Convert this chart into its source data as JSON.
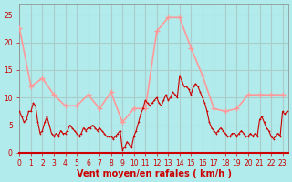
{
  "background_color": "#b2ebeb",
  "grid_color": "#aacccc",
  "line1_color": "#ff9999",
  "line2_color": "#cc0000",
  "xlabel": "Vent moyen/en rafales ( km/h )",
  "xlabel_color": "#cc0000",
  "ylabel_ticks": [
    0,
    5,
    10,
    15,
    20,
    25
  ],
  "xlim": [
    0,
    23.5
  ],
  "ylim": [
    0,
    27
  ],
  "x_ticks": [
    0,
    1,
    2,
    3,
    4,
    5,
    6,
    7,
    8,
    9,
    10,
    11,
    12,
    13,
    14,
    15,
    16,
    17,
    18,
    19,
    20,
    21,
    22,
    23
  ],
  "rafales_x": [
    0,
    1,
    2,
    3,
    4,
    5,
    6,
    7,
    8,
    9,
    10,
    11,
    12,
    13,
    14,
    15,
    16,
    17,
    18,
    19,
    20,
    21,
    22,
    23
  ],
  "rafales_y": [
    22.5,
    12.0,
    13.5,
    10.5,
    8.5,
    8.5,
    10.5,
    8.0,
    11.0,
    5.5,
    8.0,
    8.0,
    22.0,
    24.5,
    24.5,
    19.0,
    14.0,
    8.0,
    7.5,
    8.0,
    10.5,
    10.5,
    10.5,
    10.5
  ],
  "moyen_x": [
    0.0,
    0.2,
    0.4,
    0.6,
    0.8,
    1.0,
    1.2,
    1.4,
    1.6,
    1.8,
    2.0,
    2.2,
    2.4,
    2.6,
    2.8,
    3.0,
    3.2,
    3.4,
    3.6,
    3.8,
    4.0,
    4.2,
    4.4,
    4.6,
    4.8,
    5.0,
    5.2,
    5.4,
    5.6,
    5.8,
    6.0,
    6.2,
    6.4,
    6.6,
    6.8,
    7.0,
    7.2,
    7.4,
    7.6,
    7.8,
    8.0,
    8.2,
    8.4,
    8.6,
    8.8,
    9.0,
    9.2,
    9.4,
    9.6,
    9.8,
    10.0,
    10.2,
    10.4,
    10.6,
    10.8,
    11.0,
    11.2,
    11.4,
    11.6,
    11.8,
    12.0,
    12.2,
    12.4,
    12.6,
    12.8,
    13.0,
    13.2,
    13.4,
    13.6,
    13.8,
    14.0,
    14.2,
    14.4,
    14.6,
    14.8,
    15.0,
    15.2,
    15.4,
    15.6,
    15.8,
    16.0,
    16.2,
    16.4,
    16.6,
    16.8,
    17.0,
    17.2,
    17.4,
    17.6,
    17.8,
    18.0,
    18.2,
    18.4,
    18.6,
    18.8,
    19.0,
    19.2,
    19.4,
    19.6,
    19.8,
    20.0,
    20.2,
    20.4,
    20.6,
    20.8,
    21.0,
    21.2,
    21.4,
    21.6,
    21.8,
    22.0,
    22.2,
    22.4,
    22.6,
    22.8,
    23.0,
    23.2,
    23.4
  ],
  "moyen_y": [
    7.5,
    6.5,
    5.5,
    6.0,
    7.5,
    7.5,
    9.0,
    8.5,
    5.5,
    3.5,
    4.0,
    5.5,
    6.5,
    5.0,
    3.5,
    3.0,
    3.5,
    3.0,
    4.0,
    3.5,
    3.5,
    4.0,
    5.0,
    4.5,
    4.0,
    3.5,
    3.0,
    3.5,
    4.5,
    4.0,
    4.5,
    4.5,
    5.0,
    4.5,
    4.0,
    4.5,
    4.0,
    3.5,
    3.0,
    3.0,
    3.0,
    2.5,
    3.0,
    3.5,
    4.0,
    0.5,
    1.0,
    2.0,
    1.5,
    1.0,
    3.0,
    4.0,
    5.5,
    7.0,
    8.0,
    9.5,
    9.0,
    8.5,
    9.0,
    9.5,
    10.0,
    9.0,
    8.5,
    9.5,
    10.5,
    9.5,
    10.0,
    11.0,
    10.5,
    10.0,
    14.0,
    13.0,
    12.0,
    12.0,
    11.5,
    10.5,
    12.0,
    12.5,
    12.0,
    11.0,
    10.0,
    9.0,
    7.5,
    5.5,
    4.5,
    4.0,
    3.5,
    4.0,
    4.5,
    4.0,
    3.5,
    3.0,
    3.0,
    3.5,
    3.5,
    3.0,
    3.5,
    4.0,
    3.5,
    3.0,
    3.0,
    3.5,
    3.0,
    3.5,
    3.0,
    6.0,
    6.5,
    5.5,
    4.5,
    4.0,
    3.0,
    2.5,
    3.0,
    3.5,
    3.0,
    7.5,
    7.0,
    7.5
  ]
}
